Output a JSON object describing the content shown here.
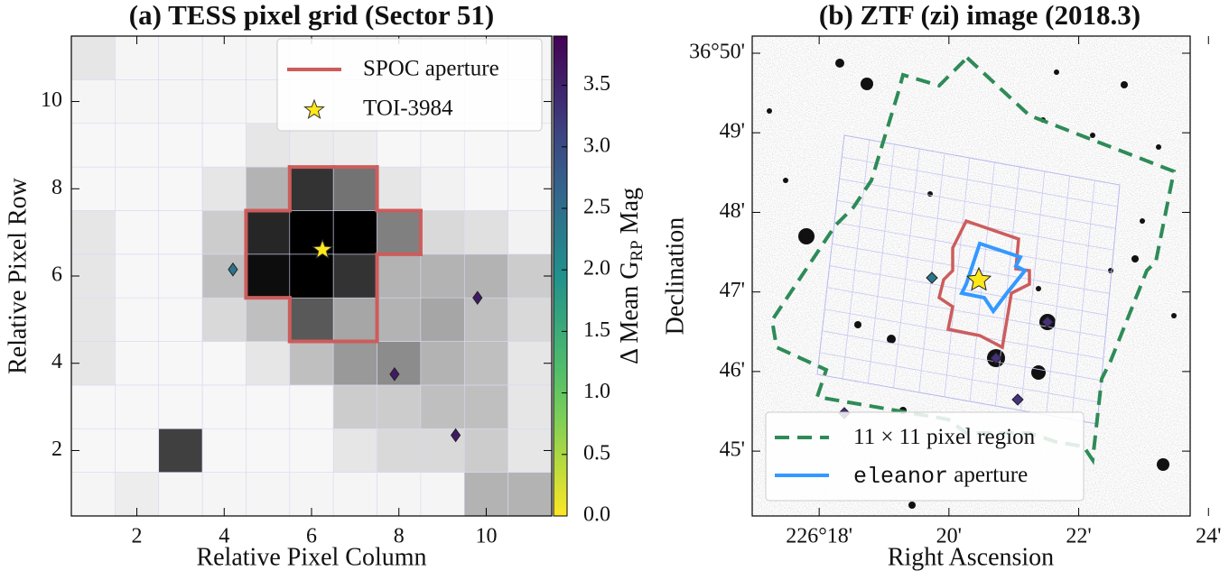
{
  "chart_data": [
    {
      "type": "heatmap",
      "title": "(a) TESS pixel grid (Sector 51)",
      "x_label": "Relative Pixel Column",
      "y_label": "Relative Pixel Row",
      "xlim": [
        0.5,
        11.5
      ],
      "ylim": [
        0.5,
        11.5
      ],
      "xticks": [
        2,
        4,
        6,
        8,
        10
      ],
      "yticks": [
        2,
        4,
        6,
        8,
        10
      ],
      "z": [
        [
          0.04,
          0.07,
          0.04,
          0.04,
          0.04,
          0.04,
          0.04,
          0.04,
          0.04,
          0.3,
          0.3
        ],
        [
          0.03,
          0.03,
          0.75,
          0.03,
          0.03,
          0.03,
          0.1,
          0.15,
          0.15,
          0.2,
          0.1
        ],
        [
          0.03,
          0.03,
          0.03,
          0.03,
          0.03,
          0.03,
          0.2,
          0.2,
          0.25,
          0.25,
          0.1
        ],
        [
          0.1,
          0.03,
          0.03,
          0.03,
          0.1,
          0.25,
          0.4,
          0.45,
          0.3,
          0.25,
          0.1
        ],
        [
          0.1,
          0.03,
          0.03,
          0.15,
          0.25,
          0.65,
          0.35,
          0.3,
          0.35,
          0.25,
          0.15
        ],
        [
          0.1,
          0.03,
          0.03,
          0.25,
          0.95,
          1.0,
          0.8,
          0.3,
          0.3,
          0.3,
          0.2
        ],
        [
          0.1,
          0.03,
          0.03,
          0.2,
          0.85,
          1.0,
          1.0,
          0.5,
          0.15,
          0.12,
          0.05
        ],
        [
          0.03,
          0.03,
          0.03,
          0.1,
          0.3,
          0.8,
          0.55,
          0.1,
          0.05,
          0.03,
          0.03
        ],
        [
          0.03,
          0.03,
          0.03,
          0.03,
          0.1,
          0.08,
          0.07,
          0.03,
          0.03,
          0.03,
          0.03
        ],
        [
          0.04,
          0.04,
          0.04,
          0.04,
          0.04,
          0.04,
          0.04,
          0.04,
          0.04,
          0.04,
          0.04
        ],
        [
          0.1,
          0.04,
          0.04,
          0.04,
          0.04,
          0.04,
          0.04,
          0.04,
          0.04,
          0.04,
          0.04
        ]
      ],
      "aperture": {
        "name": "SPOC aperture",
        "color": "#cd5c5c",
        "pixels": [
          [
            6,
            8
          ],
          [
            7,
            8
          ],
          [
            5,
            7
          ],
          [
            6,
            7
          ],
          [
            7,
            7
          ],
          [
            8,
            7
          ],
          [
            5,
            6
          ],
          [
            6,
            6
          ],
          [
            7,
            6
          ],
          [
            6,
            5
          ],
          [
            7,
            5
          ]
        ]
      },
      "target": {
        "name": "TOI-3984",
        "x": 6.25,
        "y": 6.6,
        "color": "#ffe81a"
      },
      "neighbors": {
        "x": [
          4.2,
          9.8,
          7.9,
          9.3
        ],
        "y": [
          6.15,
          5.5,
          3.75,
          2.35
        ],
        "values": [
          2.4,
          3.6,
          3.6,
          3.6
        ]
      },
      "colormap": "viridis_r",
      "colorbar": {
        "label": "Δ Mean G",
        "label_subscript": "RP",
        "label_suffix": " Mag",
        "lim": [
          0,
          3.9
        ],
        "ticks": [
          {
            "value": 0,
            "label": "0.0"
          },
          0.5,
          {
            "value": 1,
            "label": "1.0"
          },
          1.5,
          {
            "value": 2,
            "label": "2.0"
          },
          2.5,
          {
            "value": 3,
            "label": "3.0"
          },
          3.5
        ]
      }
    },
    {
      "type": "image",
      "title": "(b) ZTF (zi) image (2018.3)",
      "x_label": "Right Ascension",
      "y_label": "Declination",
      "xlim": [
        226.2828,
        226.3953
      ],
      "ylim": [
        36.73642,
        36.83692
      ],
      "xticks": [
        {
          "value": 226.3,
          "label": "226°18'"
        },
        {
          "value": 226.33333,
          "label": "20'"
        },
        {
          "value": 226.36667,
          "label": "22'"
        },
        {
          "value": 226.4,
          "label": "24'"
        }
      ],
      "yticks": [
        {
          "value": 36.75,
          "label": "45'"
        },
        {
          "value": 36.76667,
          "label": "46'"
        },
        {
          "value": 36.78333,
          "label": "47'"
        },
        {
          "value": 36.8,
          "label": "48'"
        },
        {
          "value": 36.81667,
          "label": "49'"
        },
        {
          "value": 36.83333,
          "label": "36°50'"
        }
      ],
      "legend": [
        {
          "name": "11 × 11 pixel region",
          "color": "#2e8b57",
          "style": "dashed"
        },
        {
          "name": "eleanor",
          "name_suffix": " aperture",
          "color": "#3399ff",
          "style": "solid"
        }
      ]
    }
  ]
}
